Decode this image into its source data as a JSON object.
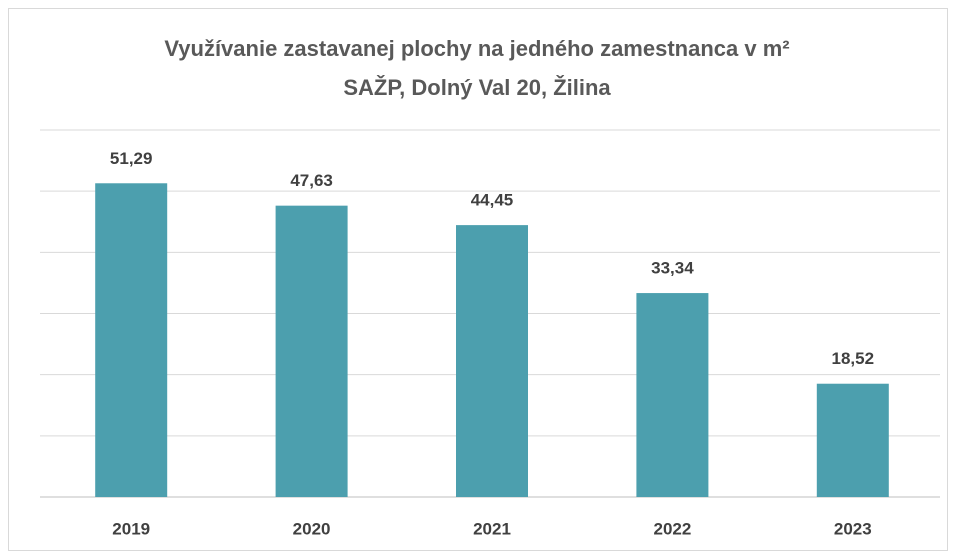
{
  "chart_data": {
    "type": "bar",
    "title": [
      "Využívanie zastavanej plochy na jedného zamestnanca v m²",
      "SAŽP, Dolný Val 20, Žilina"
    ],
    "categories": [
      "2019",
      "2020",
      "2021",
      "2022",
      "2023"
    ],
    "values": [
      51.29,
      47.63,
      44.45,
      33.34,
      18.52
    ],
    "value_labels": [
      "51,29",
      "47,63",
      "44,45",
      "33,34",
      "18,52"
    ],
    "color": "#4c9fae",
    "ylim": [
      0,
      60
    ],
    "yticks": [
      0,
      10,
      20,
      30,
      40,
      50,
      60
    ],
    "grid": true
  }
}
